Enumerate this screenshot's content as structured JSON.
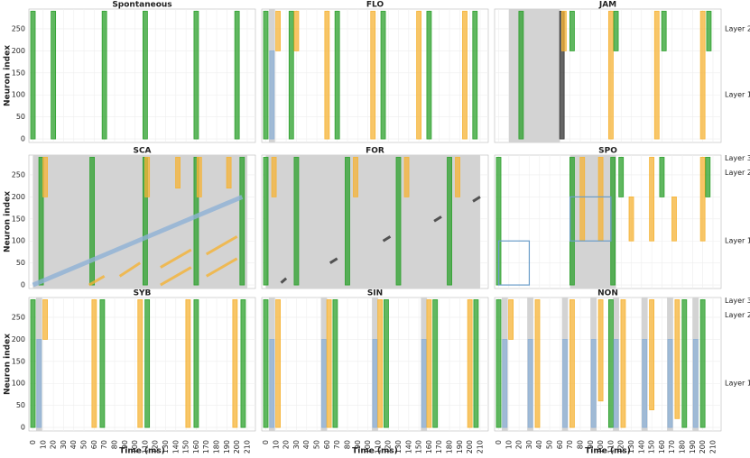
{
  "axes": {
    "xlim": [
      -4,
      218
    ],
    "ylim": [
      -8,
      295
    ],
    "xticks": [
      0,
      10,
      20,
      30,
      40,
      50,
      60,
      70,
      80,
      90,
      100,
      110,
      120,
      130,
      140,
      150,
      160,
      170,
      180,
      190,
      200,
      210
    ],
    "yticks": [
      0,
      50,
      100,
      150,
      200,
      250
    ],
    "xlabel": "Time (ms)",
    "ylabel": "Neuron index",
    "palette": {
      "g": "#2ca02c",
      "o": "#f5b335",
      "b": "#8fb2d6",
      "k": "#333333"
    }
  },
  "chart_data": [
    {
      "type": "raster",
      "title": "Spontaneous",
      "shades": [],
      "bursts": [
        [
          0,
          0,
          290,
          "g"
        ],
        [
          20,
          0,
          290,
          "g"
        ],
        [
          70,
          0,
          290,
          "g"
        ],
        [
          110,
          0,
          290,
          "g"
        ],
        [
          160,
          0,
          290,
          "g"
        ],
        [
          200,
          0,
          290,
          "g"
        ]
      ]
    },
    {
      "type": "raster",
      "title": "FLO",
      "shades": [
        [
          3,
          9
        ]
      ],
      "bursts": [
        [
          0,
          0,
          290,
          "g"
        ],
        [
          6,
          0,
          200,
          "b"
        ],
        [
          12,
          200,
          290,
          "o"
        ],
        [
          25,
          0,
          290,
          "g"
        ],
        [
          30,
          200,
          290,
          "o"
        ],
        [
          60,
          0,
          290,
          "o"
        ],
        [
          70,
          0,
          290,
          "g"
        ],
        [
          105,
          0,
          290,
          "o"
        ],
        [
          115,
          0,
          290,
          "g"
        ],
        [
          150,
          0,
          290,
          "o"
        ],
        [
          160,
          0,
          290,
          "g"
        ],
        [
          195,
          0,
          290,
          "o"
        ],
        [
          205,
          0,
          290,
          "g"
        ]
      ]
    },
    {
      "type": "raster",
      "title": "JAM",
      "shades": [
        [
          10,
          60
        ]
      ],
      "bursts": [
        [
          22,
          0,
          290,
          "g"
        ],
        [
          62,
          0,
          290,
          "k"
        ],
        [
          64,
          200,
          290,
          "o"
        ],
        [
          72,
          200,
          290,
          "g"
        ],
        [
          110,
          0,
          290,
          "o"
        ],
        [
          115,
          200,
          290,
          "g"
        ],
        [
          155,
          0,
          290,
          "o"
        ],
        [
          162,
          200,
          290,
          "g"
        ],
        [
          200,
          0,
          290,
          "o"
        ],
        [
          206,
          200,
          290,
          "g"
        ]
      ],
      "layers": [
        {
          "label": "Layer 2",
          "y": 250
        },
        {
          "label": "Layer 1",
          "y": 100
        }
      ]
    },
    {
      "type": "raster",
      "title": "SCA",
      "shades": [
        [
          0,
          210
        ]
      ],
      "bursts": [
        [
          8,
          0,
          290,
          "g"
        ],
        [
          12,
          200,
          290,
          "o"
        ],
        [
          58,
          0,
          290,
          "g"
        ],
        [
          110,
          0,
          290,
          "g"
        ],
        [
          112,
          200,
          290,
          "o"
        ],
        [
          160,
          0,
          290,
          "g"
        ],
        [
          163,
          200,
          290,
          "o"
        ],
        [
          142,
          220,
          290,
          "o"
        ],
        [
          192,
          220,
          290,
          "o"
        ],
        [
          205,
          0,
          290,
          "g"
        ]
      ],
      "lines": [
        {
          "x": [
            0,
            205
          ],
          "y": [
            0,
            200
          ],
          "color": "b",
          "w": 5
        },
        {
          "x": [
            55,
            70
          ],
          "y": [
            0,
            20
          ],
          "color": "o",
          "w": 3
        },
        {
          "x": [
            85,
            105
          ],
          "y": [
            20,
            50
          ],
          "color": "o",
          "w": 3
        },
        {
          "x": [
            125,
            155
          ],
          "y": [
            40,
            80
          ],
          "color": "o",
          "w": 3
        },
        {
          "x": [
            125,
            155
          ],
          "y": [
            0,
            40
          ],
          "color": "o",
          "w": 3
        },
        {
          "x": [
            170,
            200
          ],
          "y": [
            70,
            110
          ],
          "color": "o",
          "w": 3
        },
        {
          "x": [
            170,
            200
          ],
          "y": [
            20,
            60
          ],
          "color": "o",
          "w": 3
        }
      ]
    },
    {
      "type": "raster",
      "title": "FOR",
      "shades": [
        [
          0,
          210
        ]
      ],
      "bursts": [
        [
          0,
          0,
          290,
          "g"
        ],
        [
          8,
          200,
          290,
          "o"
        ],
        [
          30,
          0,
          290,
          "g"
        ],
        [
          80,
          0,
          290,
          "g"
        ],
        [
          88,
          200,
          290,
          "o"
        ],
        [
          130,
          0,
          290,
          "g"
        ],
        [
          138,
          200,
          290,
          "o"
        ],
        [
          180,
          0,
          290,
          "g"
        ],
        [
          188,
          200,
          290,
          "o"
        ]
      ],
      "lines": [
        {
          "x": [
            15,
            20
          ],
          "y": [
            5,
            15
          ],
          "color": "k",
          "w": 3
        },
        {
          "x": [
            63,
            70
          ],
          "y": [
            50,
            60
          ],
          "color": "k",
          "w": 3
        },
        {
          "x": [
            115,
            122
          ],
          "y": [
            100,
            110
          ],
          "color": "k",
          "w": 3
        },
        {
          "x": [
            165,
            172
          ],
          "y": [
            145,
            155
          ],
          "color": "k",
          "w": 3
        },
        {
          "x": [
            203,
            210
          ],
          "y": [
            190,
            200
          ],
          "color": "k",
          "w": 3
        }
      ],
      "layers": []
    },
    {
      "type": "raster",
      "title": "SPO",
      "shades": [
        [
          70,
          115
        ]
      ],
      "bursts": [
        [
          0,
          0,
          290,
          "g"
        ],
        [
          72,
          0,
          290,
          "g"
        ],
        [
          82,
          100,
          290,
          "o"
        ],
        [
          100,
          100,
          290,
          "o"
        ],
        [
          112,
          0,
          290,
          "g"
        ],
        [
          130,
          100,
          200,
          "o"
        ],
        [
          150,
          100,
          290,
          "o"
        ],
        [
          172,
          100,
          200,
          "o"
        ],
        [
          200,
          100,
          290,
          "o"
        ],
        [
          120,
          200,
          290,
          "g"
        ],
        [
          160,
          200,
          290,
          "g"
        ],
        [
          205,
          200,
          290,
          "g"
        ]
      ],
      "boxes": [
        [
          0,
          30,
          0,
          100
        ],
        [
          70,
          110,
          100,
          200
        ]
      ],
      "layers": [
        {
          "label": "Layer 3",
          "y": 288
        },
        {
          "label": "Layer 2",
          "y": 255
        },
        {
          "label": "Layer 1",
          "y": 100
        }
      ]
    },
    {
      "type": "raster",
      "title": "SYB",
      "shades": [
        [
          3,
          9
        ]
      ],
      "bursts": [
        [
          0,
          0,
          290,
          "g"
        ],
        [
          6,
          0,
          200,
          "b"
        ],
        [
          12,
          200,
          290,
          "o"
        ],
        [
          60,
          0,
          290,
          "o"
        ],
        [
          68,
          0,
          290,
          "g"
        ],
        [
          105,
          0,
          290,
          "o"
        ],
        [
          112,
          0,
          290,
          "g"
        ],
        [
          152,
          0,
          290,
          "o"
        ],
        [
          160,
          0,
          290,
          "g"
        ],
        [
          198,
          0,
          290,
          "o"
        ],
        [
          206,
          0,
          290,
          "g"
        ]
      ]
    },
    {
      "type": "raster",
      "title": "SIN",
      "shades": [
        [
          3,
          9
        ],
        [
          54,
          60
        ],
        [
          104,
          110
        ],
        [
          152,
          158
        ]
      ],
      "bursts": [
        [
          0,
          0,
          290,
          "g"
        ],
        [
          6,
          0,
          200,
          "b"
        ],
        [
          12,
          0,
          290,
          "o"
        ],
        [
          57,
          0,
          200,
          "b"
        ],
        [
          62,
          0,
          290,
          "o"
        ],
        [
          68,
          0,
          290,
          "g"
        ],
        [
          107,
          0,
          200,
          "b"
        ],
        [
          112,
          0,
          290,
          "o"
        ],
        [
          118,
          0,
          290,
          "g"
        ],
        [
          155,
          0,
          200,
          "b"
        ],
        [
          160,
          0,
          290,
          "o"
        ],
        [
          166,
          0,
          290,
          "g"
        ],
        [
          200,
          0,
          290,
          "o"
        ],
        [
          206,
          0,
          290,
          "g"
        ]
      ]
    },
    {
      "type": "raster",
      "title": "NON",
      "shades": [
        [
          3,
          9
        ],
        [
          28,
          34
        ],
        [
          62,
          68
        ],
        [
          90,
          96
        ],
        [
          112,
          118
        ],
        [
          140,
          146
        ],
        [
          165,
          171
        ],
        [
          190,
          196
        ]
      ],
      "bursts": [
        [
          0,
          0,
          290,
          "g"
        ],
        [
          6,
          0,
          200,
          "b"
        ],
        [
          12,
          200,
          290,
          "o"
        ],
        [
          31,
          0,
          200,
          "b"
        ],
        [
          38,
          0,
          290,
          "o"
        ],
        [
          65,
          0,
          200,
          "b"
        ],
        [
          72,
          0,
          290,
          "o"
        ],
        [
          93,
          0,
          200,
          "b"
        ],
        [
          100,
          60,
          290,
          "o"
        ],
        [
          110,
          0,
          290,
          "g"
        ],
        [
          115,
          0,
          200,
          "b"
        ],
        [
          122,
          0,
          290,
          "o"
        ],
        [
          143,
          0,
          200,
          "b"
        ],
        [
          150,
          40,
          290,
          "o"
        ],
        [
          168,
          0,
          200,
          "b"
        ],
        [
          175,
          20,
          290,
          "o"
        ],
        [
          182,
          0,
          290,
          "g"
        ],
        [
          193,
          0,
          200,
          "b"
        ],
        [
          200,
          0,
          290,
          "g"
        ]
      ],
      "layers": [
        {
          "label": "Layer 3",
          "y": 288
        },
        {
          "label": "Layer 2",
          "y": 255
        },
        {
          "label": "Layer 1",
          "y": 100
        }
      ]
    }
  ]
}
